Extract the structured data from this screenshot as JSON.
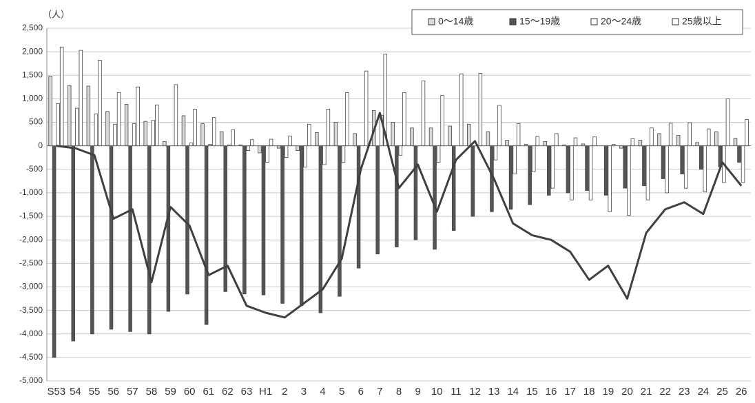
{
  "chart_data": {
    "type": "bar",
    "unit_label": "（人）",
    "categories": [
      "S53",
      "54",
      "55",
      "56",
      "57",
      "58",
      "59",
      "60",
      "61",
      "62",
      "63",
      "H1",
      "2",
      "3",
      "4",
      "5",
      "6",
      "7",
      "8",
      "9",
      "10",
      "11",
      "12",
      "13",
      "14",
      "15",
      "16",
      "17",
      "18",
      "19",
      "20",
      "21",
      "22",
      "23",
      "24",
      "25",
      "26"
    ],
    "series": [
      {
        "name": "0～14歳",
        "color": "#d8d8d8",
        "values": [
          1480,
          1280,
          1270,
          730,
          880,
          520,
          90,
          640,
          470,
          300,
          20,
          -150,
          -50,
          -100,
          280,
          500,
          260,
          750,
          500,
          380,
          380,
          420,
          460,
          300,
          120,
          30,
          90,
          20,
          40,
          0,
          -50,
          120,
          260,
          220,
          70,
          300,
          160
        ]
      },
      {
        "name": "15～19歳",
        "color": "#555555",
        "values": [
          -4500,
          -4150,
          -4000,
          -3900,
          -3950,
          -4000,
          -3520,
          -3150,
          -3800,
          -3100,
          -3150,
          -3170,
          -3350,
          -3400,
          -3550,
          -3200,
          -2600,
          -2300,
          -2150,
          -2000,
          -2200,
          -1800,
          -1500,
          -1400,
          -1350,
          -1250,
          -1050,
          -1000,
          -950,
          -1050,
          -900,
          -850,
          -700,
          -600,
          -500,
          -450,
          -350
        ]
      },
      {
        "name": "20～24歳",
        "color": "#ffffff",
        "values": [
          900,
          800,
          680,
          460,
          470,
          540,
          0,
          60,
          30,
          20,
          -100,
          -350,
          -250,
          -450,
          -400,
          -350,
          0,
          650,
          -200,
          0,
          -350,
          0,
          0,
          -300,
          -600,
          -550,
          -900,
          -1150,
          -1150,
          -1400,
          -1480,
          -1150,
          -1000,
          -900,
          -980,
          -780,
          -780
        ]
      },
      {
        "name": "25歳以上",
        "color": "#ffffff",
        "values": [
          2100,
          2030,
          1820,
          1130,
          1250,
          870,
          1300,
          780,
          600,
          340,
          130,
          140,
          210,
          460,
          780,
          1130,
          1590,
          1950,
          1130,
          1380,
          1070,
          1530,
          1540,
          860,
          470,
          200,
          260,
          170,
          190,
          30,
          150,
          380,
          480,
          490,
          360,
          1000,
          560
        ]
      },
      {
        "type": "line",
        "color": "#404040",
        "values": [
          0,
          -50,
          -200,
          -1550,
          -1350,
          -2900,
          -1300,
          -1700,
          -2750,
          -2550,
          -3400,
          -3550,
          -3650,
          -3350,
          -3050,
          -2400,
          -500,
          700,
          -900,
          -400,
          -1400,
          -300,
          100,
          -700,
          -1650,
          -1900,
          -2000,
          -2250,
          -2850,
          -2550,
          -3250,
          -1850,
          -1350,
          -1200,
          -1450,
          -350,
          -850
        ]
      }
    ],
    "ylim": [
      -5000,
      2500
    ],
    "yticks": [
      {
        "value": -5000,
        "label": "-5,000"
      },
      {
        "value": -4500,
        "label": "-4,500"
      },
      {
        "value": -4000,
        "label": "-4,000"
      },
      {
        "value": -3500,
        "label": "-3,500"
      },
      {
        "value": -3000,
        "label": "-3,000"
      },
      {
        "value": -2500,
        "label": "-2,500"
      },
      {
        "value": -2000,
        "label": "-2,000"
      },
      {
        "value": -1500,
        "label": "-1,500"
      },
      {
        "value": -1000,
        "label": "-1,000"
      },
      {
        "value": -500,
        "label": "-500"
      },
      0,
      500,
      {
        "value": 1000,
        "label": "1,000"
      },
      {
        "value": 1500,
        "label": "1,500"
      },
      {
        "value": 2000,
        "label": "2,000"
      },
      {
        "value": 2500,
        "label": "2,500"
      }
    ],
    "grid": true,
    "legend": "top-right"
  }
}
